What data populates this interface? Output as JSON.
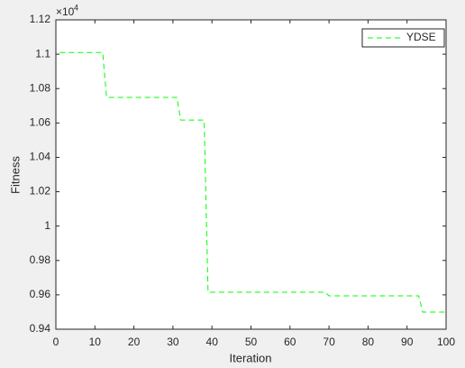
{
  "chart_data": {
    "type": "line",
    "xlabel": "Iteration",
    "ylabel": "Fitness",
    "y_multiplier": "×10",
    "y_multiplier_exponent": "4",
    "x": [
      1,
      12,
      13,
      31,
      32,
      38,
      39,
      69,
      70,
      93,
      94,
      100
    ],
    "series": [
      {
        "name": "YDSE",
        "color": "#00ff00",
        "dash": "6,4",
        "values": [
          1.101,
          1.101,
          1.0749,
          1.0749,
          1.0617,
          1.0617,
          0.9615,
          0.9615,
          0.9594,
          0.9594,
          0.95,
          0.95
        ]
      }
    ],
    "xlim": [
      0,
      100
    ],
    "xticks": [
      0,
      10,
      20,
      30,
      40,
      50,
      60,
      70,
      80,
      90,
      100
    ],
    "ylim": [
      0.94,
      1.12
    ],
    "yticks": [
      0.94,
      0.96,
      0.98,
      1,
      1.02,
      1.04,
      1.06,
      1.08,
      1.1,
      1.12
    ],
    "legend": "top-right",
    "grid": false
  }
}
